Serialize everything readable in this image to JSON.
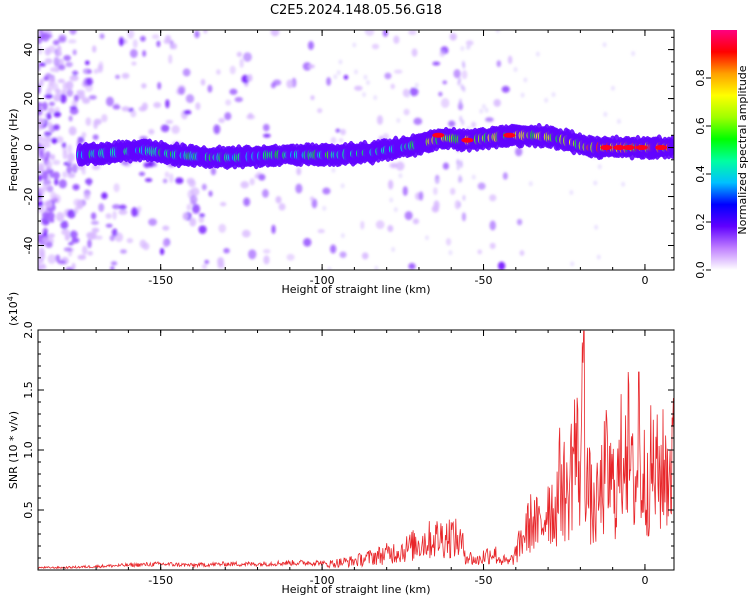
{
  "chart_data": [
    {
      "type": "heatmap",
      "title": "C2E5.2024.148.05.56.G18",
      "xlabel": "Height of straight line (km)",
      "ylabel": "Frequency (Hz)",
      "xlim": [
        -188,
        9
      ],
      "ylim": [
        -50,
        48
      ],
      "xticks": [
        -150,
        -100,
        -50,
        0
      ],
      "yticks": [
        -40,
        -20,
        0,
        20,
        40
      ],
      "grid": false,
      "colorbar": {
        "label": "Normalized spectral amplitude",
        "range": [
          0.0,
          1.0
        ],
        "ticks": [
          0.0,
          0.2,
          0.4,
          0.6,
          0.8
        ],
        "colors": [
          "#ffffff",
          "#c080ff",
          "#6000ff",
          "#0000ff",
          "#00c0ff",
          "#00ffa0",
          "#00ff00",
          "#a0ff00",
          "#ffff00",
          "#ffa000",
          "#ff0000",
          "#ff0080"
        ]
      },
      "ridge": {
        "name": "",
        "x": [
          -175,
          -165,
          -155,
          -145,
          -135,
          -125,
          -115,
          -105,
          -95,
          -85,
          -75,
          -68,
          -62,
          -55,
          -48,
          -42,
          -35,
          -28,
          -22,
          -18,
          -12,
          -6,
          0,
          5,
          9
        ],
        "y": [
          -3,
          -2,
          -1,
          -3,
          -4,
          -4,
          -3,
          -3,
          -3,
          -2,
          0,
          2,
          4,
          3,
          4,
          5,
          5,
          4,
          2,
          0,
          0,
          0,
          0,
          0,
          0
        ]
      }
    },
    {
      "type": "line",
      "title": "",
      "xlabel": "Height of straight line (km)",
      "ylabel": "SNR (10 * v/v)",
      "yscale_note": "(x10",
      "yscale_exp": "4",
      "yscale_close": ")",
      "xlim": [
        -188,
        9
      ],
      "ylim": [
        0,
        2.0
      ],
      "xticks": [
        -150,
        -100,
        -50,
        0
      ],
      "yticks": [
        0.5,
        1.0,
        1.5,
        2.0
      ],
      "ytick_labels": [
        "0.5",
        "1.0",
        "1.5",
        "2.0"
      ],
      "color": "#e8262a",
      "series": [
        {
          "name": "",
          "x": [
            -188,
            -180,
            -170,
            -160,
            -150,
            -140,
            -130,
            -120,
            -110,
            -100,
            -95,
            -90,
            -85,
            -80,
            -75,
            -70,
            -65,
            -60,
            -57,
            -55,
            -52,
            -50,
            -47,
            -45,
            -42,
            -40,
            -38,
            -35,
            -32,
            -30,
            -28,
            -26,
            -24,
            -22,
            -20,
            -19,
            -18,
            -16,
            -14,
            -12,
            -10,
            -8,
            -6,
            -4,
            -2,
            0,
            2,
            4,
            6,
            9
          ],
          "y": [
            0.02,
            0.02,
            0.03,
            0.04,
            0.05,
            0.04,
            0.05,
            0.05,
            0.06,
            0.06,
            0.08,
            0.1,
            0.14,
            0.18,
            0.22,
            0.3,
            0.35,
            0.38,
            0.3,
            0.15,
            0.1,
            0.15,
            0.2,
            0.12,
            0.08,
            0.18,
            0.35,
            0.55,
            0.45,
            0.8,
            0.6,
            1.05,
            0.75,
            1.4,
            1.1,
            1.99,
            1.0,
            0.6,
            0.8,
            1.1,
            0.9,
            1.0,
            1.65,
            0.95,
            1.05,
            1.0,
            1.12,
            1.05,
            1.1,
            1.2
          ]
        }
      ]
    }
  ]
}
